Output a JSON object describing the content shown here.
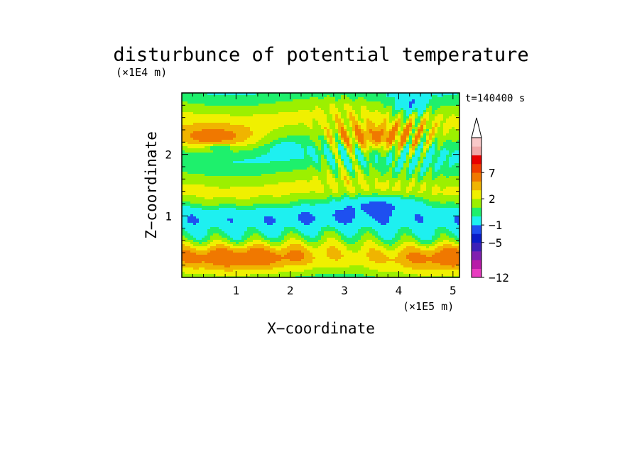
{
  "chart_data": {
    "type": "heatmap",
    "title": "disturbunce of potential temperature",
    "xlabel": "X−coordinate",
    "ylabel": "Z−coordinate",
    "x_unit": "(×1E5 m)",
    "y_unit": "(×1E4 m)",
    "time_label": "t=140400 s",
    "xlim": [
      0,
      5.12
    ],
    "ylim": [
      0,
      3.0
    ],
    "x_ticks": [
      1,
      2,
      3,
      4,
      5
    ],
    "x_tick_labels": [
      "1",
      "2",
      "3",
      "4",
      "5"
    ],
    "y_ticks": [
      1,
      2
    ],
    "y_tick_labels": [
      "1",
      "2"
    ],
    "colorbar": {
      "levels": [
        -12,
        -11,
        -9,
        -7,
        -5,
        -3,
        -1,
        0,
        1,
        2,
        3,
        5,
        7,
        9,
        11
      ],
      "colors": [
        "#e83cc0",
        "#b81aa8",
        "#8020b0",
        "#3c20b8",
        "#0a1cc8",
        "#1e50f0",
        "#1ef0f0",
        "#1ef06c",
        "#9cf000",
        "#f0f000",
        "#f0b400",
        "#f07800",
        "#f03c00",
        "#e80000",
        "#f0a8a8",
        "#f8c8c8"
      ],
      "tick_values": [
        -12,
        -5,
        -1,
        2,
        7
      ],
      "tick_labels": [
        "−12",
        "−5",
        "−1",
        "2",
        "7"
      ],
      "extend": "max"
    },
    "grid": false,
    "legend": "colorbar right"
  }
}
